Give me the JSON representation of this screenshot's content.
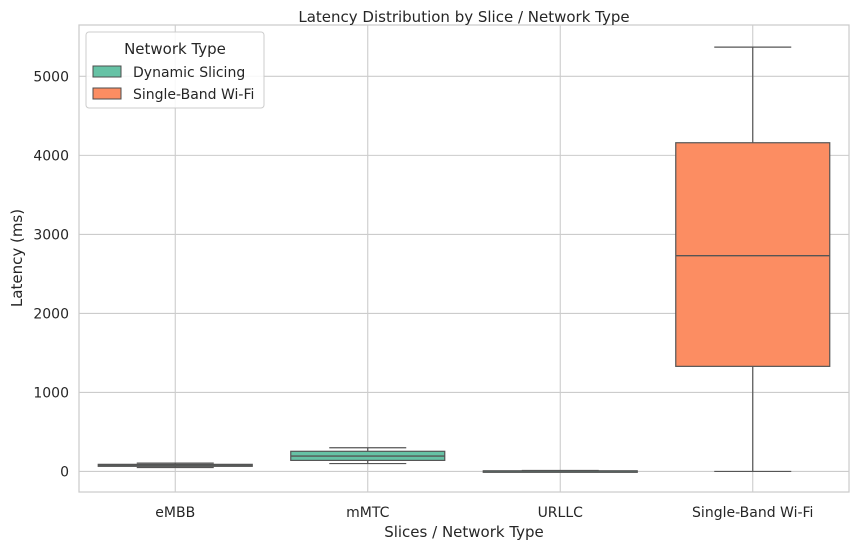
{
  "chart_data": {
    "type": "box",
    "title": "Latency Distribution by Slice / Network Type",
    "xlabel": "Slices / Network Type",
    "ylabel": "Latency (ms)",
    "ylim": [
      -260,
      5650
    ],
    "yticks": [
      0,
      1000,
      2000,
      3000,
      4000,
      5000
    ],
    "grid": true,
    "legend": {
      "title": "Network Type",
      "placement": "top-left",
      "entries": [
        {
          "name": "Dynamic Slicing",
          "color": "#66c2a5"
        },
        {
          "name": "Single-Band Wi-Fi",
          "color": "#fc8d62"
        }
      ]
    },
    "categories": [
      "eMBB",
      "mMTC",
      "URLLC",
      "Single-Band Wi-Fi"
    ],
    "boxes": [
      {
        "category": "eMBB",
        "series": "Dynamic Slicing",
        "whisker_low": 50,
        "q1": 65,
        "median": 80,
        "q3": 90,
        "whisker_high": 105
      },
      {
        "category": "mMTC",
        "series": "Dynamic Slicing",
        "whisker_low": 100,
        "q1": 140,
        "median": 195,
        "q3": 255,
        "whisker_high": 300
      },
      {
        "category": "URLLC",
        "series": "Dynamic Slicing",
        "whisker_low": 1,
        "q1": 3,
        "median": 5,
        "q3": 8,
        "whisker_high": 12
      },
      {
        "category": "Single-Band Wi-Fi",
        "series": "Single-Band Wi-Fi",
        "whisker_low": 0,
        "q1": 1330,
        "median": 2730,
        "q3": 4160,
        "whisker_high": 5370
      }
    ]
  }
}
